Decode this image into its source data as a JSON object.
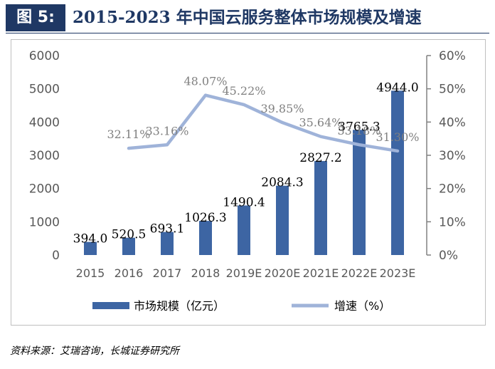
{
  "figure": {
    "label": "图 5:",
    "title": "2015-2023 年中国云服务整体市场规模及增速"
  },
  "source": "资料来源：艾瑞咨询，长城证券研究所",
  "colors": {
    "bar": "#3d65a3",
    "line": "#9fb3d9",
    "axis_text": "#595959",
    "title_bg": "#1f3864"
  },
  "chart_data": {
    "type": "bar",
    "categories": [
      "2015",
      "2016",
      "2017",
      "2018",
      "2019E",
      "2020E",
      "2021E",
      "2022E",
      "2023E"
    ],
    "series": [
      {
        "name": "市场规模（亿元）",
        "type": "bar",
        "axis": "left",
        "values": [
          394.0,
          520.5,
          693.1,
          1026.3,
          1490.4,
          2084.3,
          2827.2,
          3765.3,
          4944.0
        ],
        "labels": [
          "394.0",
          "520.5",
          "693.1",
          "1026.3",
          "1490.4",
          "2084.3",
          "2827.2",
          "3765.3",
          "4944.0"
        ]
      },
      {
        "name": "增速（%）",
        "type": "line",
        "axis": "right",
        "values": [
          null,
          32.11,
          33.16,
          48.07,
          45.22,
          39.85,
          35.64,
          33.18,
          31.3
        ],
        "labels": [
          "",
          "32.11%",
          "33.16%",
          "48.07%",
          "45.22%",
          "39.85%",
          "35.64%",
          "33.18%",
          "31.30%"
        ]
      }
    ],
    "ylim_left": [
      0,
      6000
    ],
    "yticks_left": [
      "0",
      "1000",
      "2000",
      "3000",
      "4000",
      "5000",
      "6000"
    ],
    "ylim_right": [
      0,
      60
    ],
    "yticks_right": [
      "0%",
      "10%",
      "20%",
      "30%",
      "40%",
      "50%",
      "60%"
    ],
    "grid": false,
    "legend_position": "bottom",
    "legend": [
      "市场规模（亿元）",
      "增速（%）"
    ]
  }
}
